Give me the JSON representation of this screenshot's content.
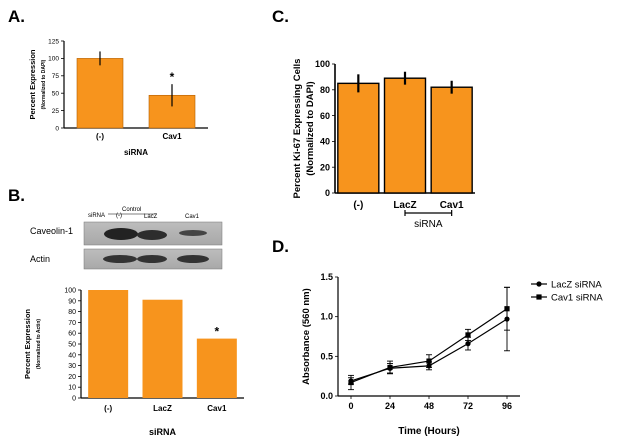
{
  "panels": {
    "A": {
      "letter": "A."
    },
    "B": {
      "letter": "B."
    },
    "C": {
      "letter": "C."
    },
    "D": {
      "letter": "D."
    }
  },
  "blot": {
    "lane_header": "siRNA",
    "group_label": "Control",
    "lanes": [
      "(-)",
      "LacZ",
      "Cav1"
    ],
    "rows": [
      "Caveolin-1",
      "Actin"
    ]
  },
  "chart_data": [
    {
      "panel": "A",
      "type": "bar",
      "categories": [
        "(-)",
        "Cav1"
      ],
      "values": [
        100,
        47
      ],
      "errors": [
        10,
        16
      ],
      "ylabel": "Percent Expression",
      "ylabel2": "(Normalized to DAPI)",
      "xlabel": "siRNA",
      "ylim": [
        0,
        125
      ],
      "yticks": [
        0,
        25,
        50,
        75,
        100,
        125
      ],
      "significance": [
        "",
        "*"
      ],
      "bar_color": "#F7941D"
    },
    {
      "panel": "B",
      "type": "bar",
      "categories": [
        "(-)",
        "LacZ",
        "Cav1"
      ],
      "values": [
        100,
        91,
        55
      ],
      "ylabel": "Percent Expression",
      "ylabel2": "(Normalized to Actin)",
      "xlabel": "siRNA",
      "ylim": [
        0,
        100
      ],
      "yticks": [
        0,
        10,
        20,
        30,
        40,
        50,
        60,
        70,
        80,
        90,
        100
      ],
      "significance": [
        "",
        "",
        "*"
      ],
      "bar_color": "#F7941D"
    },
    {
      "panel": "C",
      "type": "bar",
      "categories": [
        "(-)",
        "LacZ",
        "Cav1"
      ],
      "values": [
        85,
        89,
        82
      ],
      "errors": [
        7,
        5,
        5
      ],
      "ylabel": "Percent Ki-67 Expressing Cells",
      "ylabel2": "(Normalized to DAPI)",
      "bracket_label": "siRNA",
      "ylim": [
        0,
        100
      ],
      "yticks": [
        0,
        20,
        40,
        60,
        80,
        100
      ],
      "bar_color": "#F7941D"
    },
    {
      "panel": "D",
      "type": "line",
      "x": [
        0,
        24,
        48,
        72,
        96
      ],
      "series": [
        {
          "name": "LacZ siRNA",
          "marker": "circle",
          "values": [
            0.19,
            0.35,
            0.38,
            0.66,
            0.97
          ],
          "errors": [
            0.04,
            0.06,
            0.05,
            0.08,
            0.4
          ]
        },
        {
          "name": "Cav1 siRNA",
          "marker": "square",
          "values": [
            0.17,
            0.36,
            0.44,
            0.77,
            1.1
          ],
          "errors": [
            0.09,
            0.08,
            0.08,
            0.07,
            0.27
          ]
        }
      ],
      "xlabel": "Time (Hours)",
      "ylabel": "Absorbance (560 nm)",
      "xticks": [
        0,
        24,
        48,
        72,
        96
      ],
      "yticks": [
        0.0,
        0.5,
        1.0,
        1.5
      ],
      "ytick_labels": [
        "0.0",
        "0.5",
        "1.0",
        "1.5"
      ],
      "ylim": [
        0,
        1.5
      ],
      "legend": "top-right"
    }
  ]
}
